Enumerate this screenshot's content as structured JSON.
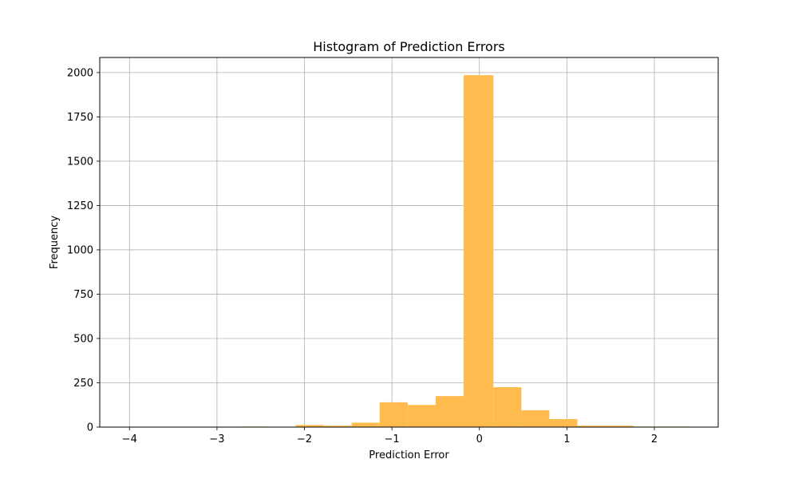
{
  "chart_data": {
    "type": "bar",
    "title": "Histogram of Prediction Errors",
    "xlabel": "Prediction Error",
    "ylabel": "Frequency",
    "xlim": [
      -4.34,
      2.73
    ],
    "ylim": [
      0,
      2085
    ],
    "xticks": [
      -4,
      -3,
      -2,
      -1,
      0,
      1,
      2
    ],
    "xtick_labels": [
      "−4",
      "−3",
      "−2",
      "−1",
      "0",
      "1",
      "2"
    ],
    "yticks": [
      0,
      250,
      500,
      750,
      1000,
      1250,
      1500,
      1750,
      2000
    ],
    "ytick_labels": [
      "0",
      "250",
      "500",
      "750",
      "1000",
      "1250",
      "1500",
      "1750",
      "2000"
    ],
    "grid": true,
    "bar_color": "#ffbb4d",
    "bin_edges": [
      -4.02,
      -3.7,
      -3.38,
      -3.06,
      -2.74,
      -2.42,
      -2.1,
      -1.78,
      -1.46,
      -1.14,
      -0.82,
      -0.5,
      -0.18,
      0.16,
      0.48,
      0.8,
      1.12,
      1.44,
      1.76,
      2.08,
      2.4
    ],
    "values": [
      1,
      1,
      1,
      1,
      3,
      2,
      12,
      8,
      25,
      140,
      125,
      175,
      1985,
      225,
      95,
      45,
      8,
      8,
      3,
      3
    ]
  }
}
